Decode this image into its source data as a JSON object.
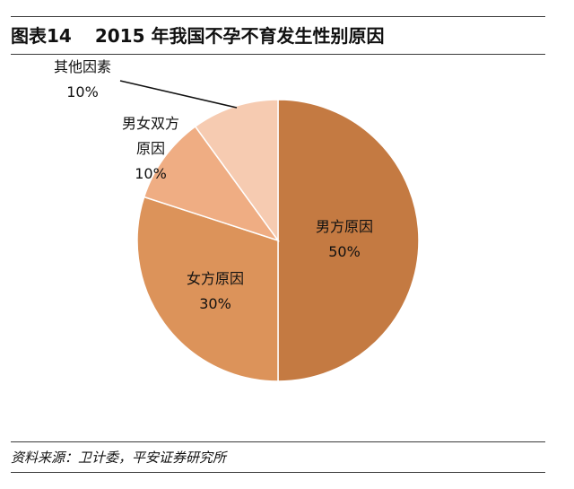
{
  "header": {
    "figure_label": "图表14",
    "title": "2015 年我国不孕不育发生性别原因"
  },
  "chart_data": {
    "type": "pie",
    "title": "2015 年我国不孕不育发生性别原因",
    "slices": [
      {
        "label": "男方原因",
        "value": 50,
        "value_label": "50%",
        "color": "#c47a42"
      },
      {
        "label": "女方原因",
        "value": 30,
        "value_label": "30%",
        "color": "#dc935a"
      },
      {
        "label": "男女双方原因",
        "value": 10,
        "value_label": "10%",
        "color": "#efad83"
      },
      {
        "label": "其他因素",
        "value": 10,
        "value_label": "10%",
        "color": "#f6cbb1"
      }
    ],
    "start_angle_deg": 0,
    "direction": "clockwise",
    "legend": "none"
  },
  "footer": {
    "source": "资料来源：卫计委，平安证券研究所"
  }
}
